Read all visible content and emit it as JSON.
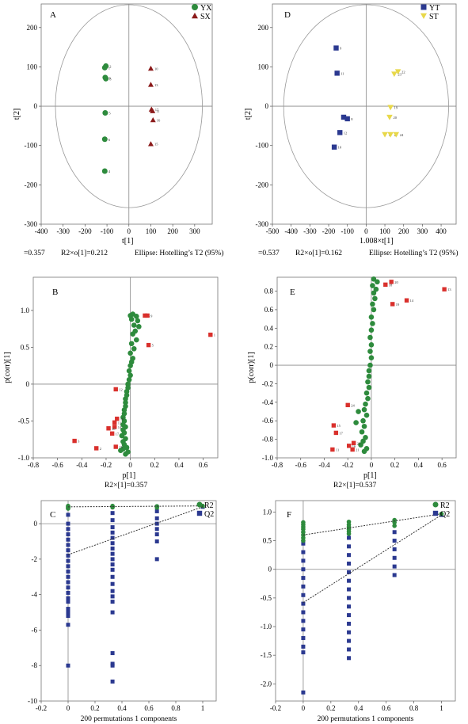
{
  "colors": {
    "green": "#2e8b3d",
    "darkred": "#8b1a1a",
    "navy": "#2b3990",
    "yellow": "#e8d84a",
    "red": "#d9302c",
    "ellipse": "#999999",
    "axis": "#888888"
  },
  "chart_data": [
    {
      "panel": "A",
      "type": "scatter",
      "xlabel": "t[1]",
      "ylabel": "t[2]",
      "xlim": [
        -400,
        380
      ],
      "ylim": [
        -300,
        260
      ],
      "xticks": [
        -400,
        -300,
        -200,
        -100,
        0,
        100,
        200,
        300
      ],
      "yticks": [
        -300,
        -200,
        -100,
        0,
        100,
        200
      ],
      "ellipse": {
        "rx": 335,
        "ry": 258
      },
      "caption_parts": [
        "=0.357",
        "R2×o[1]=0.212",
        "Ellipse: Hotelling’s T2 (95%)"
      ],
      "legend": [
        "YX",
        "SX"
      ],
      "series": [
        {
          "name": "YX",
          "marker": "circle",
          "color": "green",
          "points": [
            [
              -105,
              102,
              "2"
            ],
            [
              -110,
              98,
              "1"
            ],
            [
              -108,
              73,
              "3"
            ],
            [
              -105,
              70,
              "8"
            ],
            [
              -108,
              -17,
              "5"
            ],
            [
              -110,
              -84,
              "6"
            ],
            [
              -110,
              -165,
              "4"
            ]
          ]
        },
        {
          "name": "SX",
          "marker": "triangle",
          "color": "darkred",
          "points": [
            [
              100,
              96,
              "10"
            ],
            [
              100,
              55,
              "13"
            ],
            [
              103,
              -8,
              "17"
            ],
            [
              108,
              -12,
              "11"
            ],
            [
              110,
              -35,
              "16"
            ],
            [
              100,
              -96,
              "15"
            ]
          ]
        }
      ]
    },
    {
      "panel": "D",
      "type": "scatter",
      "xlabel": "1.008×t[1]",
      "ylabel": "t[2]",
      "xlim": [
        -500,
        480
      ],
      "ylim": [
        -300,
        260
      ],
      "xticks": [
        -500,
        -400,
        -300,
        -200,
        -100,
        0,
        100,
        200,
        300,
        400
      ],
      "yticks": [
        -300,
        -200,
        -100,
        0,
        100,
        200
      ],
      "ellipse": {
        "rx": 440,
        "ry": 258
      },
      "caption_parts": [
        "=0.537",
        "R2×o[1]=0.162",
        "Ellipse: Hotelling’s T2 (95%)"
      ],
      "legend": [
        "YT",
        "ST"
      ],
      "series": [
        {
          "name": "YT",
          "marker": "square",
          "color": "navy",
          "points": [
            [
              -160,
              148,
              "9"
            ],
            [
              -155,
              84,
              "11"
            ],
            [
              -120,
              -28,
              "7"
            ],
            [
              -100,
              -32,
              "8"
            ],
            [
              -140,
              -67,
              "12"
            ],
            [
              -170,
              -104,
              "10"
            ]
          ]
        },
        {
          "name": "ST",
          "marker": "triangle-down",
          "color": "yellow",
          "points": [
            [
              170,
              88,
              "22"
            ],
            [
              150,
              82,
              "23"
            ],
            [
              130,
              -3,
              "19"
            ],
            [
              125,
              -28,
              "20"
            ],
            [
              100,
              -72,
              "17"
            ],
            [
              130,
              -72,
              "21"
            ],
            [
              160,
              -72,
              "24"
            ]
          ]
        }
      ]
    },
    {
      "panel": "B",
      "type": "scatter",
      "xlabel": "p[1]",
      "ylabel": "p(corr)[1]",
      "caption": "R2×[1]=0.357",
      "xlim": [
        -0.8,
        0.72
      ],
      "ylim": [
        -1.0,
        1.45
      ],
      "xticks": [
        -0.8,
        -0.6,
        -0.4,
        -0.2,
        0,
        0.2,
        0.4,
        0.6
      ],
      "yticks": [
        -1,
        -0.5,
        0,
        0.5,
        1
      ],
      "green_points": [
        [
          0.0,
          0.93
        ],
        [
          0.02,
          0.95
        ],
        [
          0.05,
          0.92
        ],
        [
          0.01,
          0.88
        ],
        [
          0.06,
          0.86
        ],
        [
          0.03,
          0.8
        ],
        [
          0.07,
          0.78
        ],
        [
          0.04,
          0.72
        ],
        [
          0.02,
          0.68
        ],
        [
          0.05,
          0.6
        ],
        [
          0.01,
          0.55
        ],
        [
          0.03,
          0.48
        ],
        [
          0.0,
          0.42
        ],
        [
          0.02,
          0.35
        ],
        [
          0.01,
          0.3
        ],
        [
          0.0,
          0.25
        ],
        [
          -0.01,
          0.18
        ],
        [
          0.0,
          0.12
        ],
        [
          -0.01,
          0.06
        ],
        [
          -0.02,
          0.0
        ],
        [
          -0.02,
          -0.05
        ],
        [
          -0.03,
          -0.1
        ],
        [
          -0.03,
          -0.15
        ],
        [
          -0.04,
          -0.2
        ],
        [
          -0.04,
          -0.25
        ],
        [
          -0.04,
          -0.3
        ],
        [
          -0.05,
          -0.35
        ],
        [
          -0.05,
          -0.4
        ],
        [
          -0.06,
          -0.45
        ],
        [
          -0.05,
          -0.5
        ],
        [
          -0.06,
          -0.55
        ],
        [
          -0.04,
          -0.58
        ],
        [
          -0.06,
          -0.62
        ],
        [
          -0.05,
          -0.66
        ],
        [
          -0.07,
          -0.7
        ],
        [
          -0.04,
          -0.74
        ],
        [
          -0.06,
          -0.78
        ],
        [
          -0.05,
          -0.82
        ],
        [
          -0.03,
          -0.86
        ],
        [
          -0.06,
          -0.88
        ],
        [
          -0.08,
          -0.9
        ],
        [
          -0.02,
          -0.92
        ],
        [
          -0.04,
          -0.95
        ]
      ],
      "red_points": [
        [
          0.66,
          0.67,
          "1"
        ],
        [
          0.15,
          0.53,
          "5"
        ],
        [
          0.12,
          0.93,
          "6"
        ],
        [
          0.14,
          0.93,
          "9"
        ],
        [
          -0.12,
          -0.07,
          "12"
        ],
        [
          -0.11,
          -0.47,
          "16"
        ],
        [
          -0.13,
          -0.52,
          "13"
        ],
        [
          -0.13,
          -0.58,
          "14"
        ],
        [
          -0.18,
          -0.6,
          "10"
        ],
        [
          -0.15,
          -0.67,
          "17"
        ],
        [
          -0.46,
          -0.77,
          "3"
        ],
        [
          -0.28,
          -0.87,
          "2"
        ],
        [
          -0.12,
          -0.85,
          "15"
        ]
      ]
    },
    {
      "panel": "E",
      "type": "scatter",
      "xlabel": "p[1]",
      "ylabel": "p(corr)[1]",
      "caption": "R2×[1]=0.537",
      "xlim": [
        -0.8,
        0.72
      ],
      "ylim": [
        -1.0,
        0.95
      ],
      "xticks": [
        -0.8,
        -0.6,
        -0.4,
        -0.2,
        0,
        0.2,
        0.4,
        0.6
      ],
      "yticks": [
        -1,
        -0.8,
        -0.6,
        -0.4,
        -0.2,
        0,
        0.2,
        0.4,
        0.6,
        0.8
      ],
      "green_points": [
        [
          0.02,
          0.93
        ],
        [
          0.05,
          0.9
        ],
        [
          0.01,
          0.86
        ],
        [
          0.04,
          0.82
        ],
        [
          0.02,
          0.78
        ],
        [
          0.03,
          0.72
        ],
        [
          0.01,
          0.66
        ],
        [
          0.02,
          0.6
        ],
        [
          0.0,
          0.52
        ],
        [
          0.01,
          0.45
        ],
        [
          0.0,
          0.38
        ],
        [
          -0.01,
          0.3
        ],
        [
          0.0,
          0.22
        ],
        [
          -0.01,
          0.15
        ],
        [
          0.0,
          0.08
        ],
        [
          -0.01,
          0.0
        ],
        [
          -0.02,
          -0.06
        ],
        [
          -0.02,
          -0.12
        ],
        [
          -0.03,
          -0.18
        ],
        [
          -0.02,
          -0.24
        ],
        [
          -0.04,
          -0.3
        ],
        [
          -0.03,
          -0.36
        ],
        [
          -0.05,
          -0.42
        ],
        [
          -0.06,
          -0.48
        ],
        [
          -0.04,
          -0.54
        ],
        [
          -0.07,
          -0.6
        ],
        [
          -0.06,
          -0.66
        ],
        [
          -0.08,
          -0.72
        ],
        [
          -0.05,
          -0.78
        ],
        [
          -0.07,
          -0.82
        ],
        [
          -0.09,
          -0.86
        ],
        [
          -0.04,
          -0.9
        ],
        [
          -0.06,
          -0.93
        ],
        [
          -0.11,
          -0.5
        ],
        [
          -0.13,
          -0.62
        ]
      ],
      "red_points": [
        [
          0.62,
          0.82,
          "13"
        ],
        [
          0.17,
          0.9,
          "20"
        ],
        [
          0.12,
          0.87,
          "18"
        ],
        [
          0.3,
          0.7,
          "14"
        ],
        [
          0.18,
          0.66,
          "19"
        ],
        [
          -0.2,
          -0.43,
          "24"
        ],
        [
          -0.32,
          -0.65,
          "15"
        ],
        [
          -0.3,
          -0.73,
          "17"
        ],
        [
          -0.15,
          -0.84,
          "22"
        ],
        [
          -0.19,
          -0.87,
          "16"
        ],
        [
          -0.16,
          -0.91,
          "21"
        ],
        [
          -0.33,
          -0.91,
          "11"
        ]
      ]
    },
    {
      "panel": "C",
      "type": "scatter",
      "xlabel": "200 permutations 1 components",
      "xlim": [
        -0.2,
        1.1
      ],
      "ylim": [
        -10,
        1.3
      ],
      "xticks": [
        -0.2,
        0,
        0.2,
        0.4,
        0.6,
        0.8,
        1
      ],
      "yticks": [
        -10,
        -8,
        -6,
        -4,
        -2,
        0
      ],
      "legend": [
        "R2",
        "Q2"
      ],
      "r2_points": [
        [
          0,
          0.95
        ],
        [
          0,
          0.9
        ],
        [
          0,
          0.85
        ],
        [
          0,
          1.0
        ],
        [
          0.33,
          0.92
        ],
        [
          0.33,
          1.0
        ],
        [
          0.33,
          0.96
        ],
        [
          0.66,
          0.98
        ],
        [
          0.66,
          0.9
        ],
        [
          1.0,
          1.0
        ]
      ],
      "r2_line": [
        [
          0,
          0.95
        ],
        [
          1.0,
          1.0
        ]
      ],
      "q2_line": [
        [
          0,
          -1.75
        ],
        [
          1.0,
          0.95
        ]
      ],
      "q2_columns": [
        {
          "x": 0,
          "values": [
            0.5,
            0.0,
            -0.3,
            -0.6,
            -0.9,
            -1.2,
            -1.5,
            -1.8,
            -2.1,
            -2.4,
            -2.7,
            -3.0,
            -3.3,
            -3.6,
            -3.9,
            -4.2,
            -4.4,
            -4.8,
            -5.0,
            -5.2,
            -5.7,
            -8.0
          ]
        },
        {
          "x": 0.33,
          "values": [
            0.6,
            0.2,
            -0.2,
            -0.5,
            -0.8,
            -1.1,
            -1.4,
            -1.7,
            -2.0,
            -2.3,
            -2.6,
            -3.0,
            -3.4,
            -3.8,
            -4.1,
            -4.4,
            -5.0,
            -7.3,
            -7.9,
            -8.0,
            -8.9
          ]
        },
        {
          "x": 0.66,
          "values": [
            0.7,
            0.3,
            0.0,
            -0.3,
            -0.6,
            -1.0,
            -2.0
          ]
        },
        {
          "x": 1.0,
          "values": [
            0.95
          ]
        }
      ]
    },
    {
      "panel": "F",
      "type": "scatter",
      "xlabel": "200 permutations 1 components",
      "xlim": [
        -0.2,
        1.1
      ],
      "ylim": [
        -2.3,
        1.2
      ],
      "xticks": [
        -0.2,
        0,
        0.2,
        0.4,
        0.6,
        0.8,
        1
      ],
      "yticks": [
        -2.0,
        -1.5,
        -1.0,
        -0.5,
        0,
        0.5,
        1.0
      ],
      "legend": [
        "R2",
        "Q2"
      ],
      "r2_points": [
        [
          0,
          0.82
        ],
        [
          0,
          0.78
        ],
        [
          0,
          0.74
        ],
        [
          0,
          0.7
        ],
        [
          0,
          0.65
        ],
        [
          0,
          0.6
        ],
        [
          0,
          0.55
        ],
        [
          0,
          0.5
        ],
        [
          0.33,
          0.83
        ],
        [
          0.33,
          0.78
        ],
        [
          0.33,
          0.74
        ],
        [
          0.33,
          0.7
        ],
        [
          0.33,
          0.66
        ],
        [
          0.33,
          0.62
        ],
        [
          0.66,
          0.86
        ],
        [
          0.66,
          0.82
        ],
        [
          0.66,
          0.76
        ],
        [
          1.0,
          0.97
        ]
      ],
      "r2_line": [
        [
          0,
          0.6
        ],
        [
          1.0,
          0.97
        ]
      ],
      "q2_line": [
        [
          0,
          -0.58
        ],
        [
          1.0,
          0.95
        ]
      ],
      "q2_columns": [
        {
          "x": 0,
          "values": [
            0.45,
            0.3,
            0.15,
            0.0,
            -0.15,
            -0.3,
            -0.45,
            -0.6,
            -0.75,
            -0.9,
            -1.05,
            -1.2,
            -1.35,
            -1.45,
            -2.15
          ]
        },
        {
          "x": 0.33,
          "values": [
            0.55,
            0.4,
            0.25,
            0.1,
            -0.05,
            -0.2,
            -0.35,
            -0.5,
            -0.65,
            -0.8,
            -0.95,
            -1.1,
            -1.25,
            -1.4,
            -1.55
          ]
        },
        {
          "x": 0.66,
          "values": [
            0.65,
            0.5,
            0.35,
            0.2,
            0.05,
            -0.1
          ]
        },
        {
          "x": 1.0,
          "values": [
            0.95
          ]
        }
      ]
    }
  ]
}
